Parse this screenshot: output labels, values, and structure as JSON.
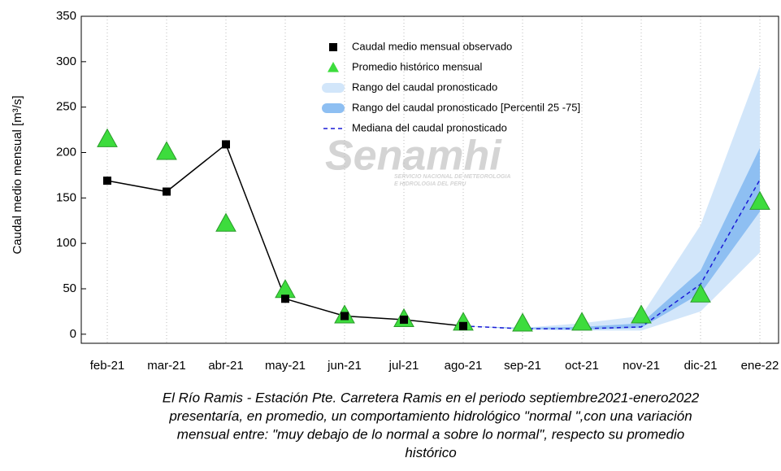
{
  "chart_data": {
    "type": "line",
    "ylabel": "Caudal medio mensual  [m³/s]",
    "watermark": {
      "name": "Senamhi",
      "sub": [
        "SERVICIO NACIONAL DE METEOROLOGIA",
        "E HIDROLOGIA DEL PERU"
      ]
    },
    "categories": [
      "feb-21",
      "mar-21",
      "abr-21",
      "may-21",
      "jun-21",
      "jul-21",
      "ago-21",
      "sep-21",
      "oct-21",
      "nov-21",
      "dic-21",
      "ene-22"
    ],
    "ylim": [
      -10,
      350
    ],
    "yticks": [
      0,
      50,
      100,
      150,
      200,
      250,
      300,
      350
    ],
    "grid": true,
    "series": [
      {
        "name": "Caudal medio mensual observado",
        "style": "square-line",
        "color": "#000000",
        "values": [
          169,
          157,
          209,
          39,
          20,
          16,
          9,
          null,
          null,
          null,
          null,
          null
        ]
      },
      {
        "name": "Promedio histórico mensual",
        "style": "triangle",
        "color": "#3ddc3d",
        "values": [
          215,
          201,
          122,
          49,
          21,
          17,
          13,
          12,
          13,
          21,
          44,
          146
        ]
      },
      {
        "name": "Rango del caudal pronosticado",
        "style": "band",
        "color": "#d2e6fa",
        "low": [
          null,
          null,
          null,
          null,
          null,
          null,
          9,
          5,
          4,
          4,
          25,
          90
        ],
        "high": [
          null,
          null,
          null,
          null,
          null,
          null,
          9,
          7,
          12,
          20,
          120,
          295
        ]
      },
      {
        "name": "Rango del caudal pronosticado [Percentil 25 -75]",
        "style": "band",
        "color": "#8ebff2",
        "low": [
          null,
          null,
          null,
          null,
          null,
          null,
          9,
          6,
          5,
          7,
          45,
          135
        ],
        "high": [
          null,
          null,
          null,
          null,
          null,
          null,
          9,
          7,
          8,
          12,
          70,
          205
        ]
      },
      {
        "name": "Mediana del caudal pronosticado",
        "style": "dashed",
        "color": "#1a1ad6",
        "values": [
          null,
          null,
          null,
          null,
          null,
          null,
          9,
          6,
          6,
          8,
          55,
          170
        ]
      }
    ],
    "caption": [
      "El Río Ramis - Estación Pte. Carretera Ramis en el periodo septiembre2021-enero2022",
      "presentaría, en promedio, un comportamiento hidrológico \"normal \",con una variación",
      "mensual entre: \"muy debajo de lo normal a sobre lo normal\", respecto su promedio",
      "histórico"
    ]
  }
}
